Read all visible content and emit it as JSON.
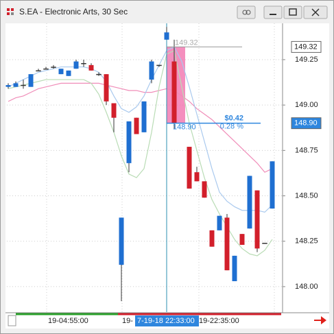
{
  "chart_data": {
    "type": "candlestick",
    "title": "S.EA - Electronic Arts, 30 Sec",
    "categories": [
      null,
      null,
      null,
      null,
      null,
      null,
      null,
      null,
      null,
      null,
      null,
      null,
      null,
      null,
      null,
      null,
      null,
      null,
      null,
      null,
      null,
      null,
      null,
      null,
      null,
      null,
      null,
      null,
      null,
      null,
      null,
      null,
      null,
      null,
      null,
      null
    ],
    "open": [
      149.1,
      149.1,
      149.11,
      149.1,
      149.19,
      149.2,
      149.21,
      149.17,
      149.16,
      149.2,
      149.23,
      149.22,
      149.17,
      149.17,
      149.01,
      148.12,
      148.68,
      148.93,
      148.85,
      149.14,
      149.22,
      149.36,
      149.24,
      null,
      148.77,
      148.63,
      148.58,
      148.31,
      148.31,
      148.38,
      148.03,
      148.29,
      148.32,
      148.53,
      148.24,
      148.43
    ],
    "high": [
      149.12,
      149.13,
      149.14,
      149.17,
      149.2,
      149.21,
      149.22,
      149.2,
      149.19,
      149.25,
      149.25,
      149.23,
      149.18,
      149.17,
      149.01,
      148.38,
      148.91,
      148.93,
      149.02,
      149.25,
      149.22,
      149.43,
      149.36,
      null,
      148.77,
      148.66,
      148.58,
      148.31,
      148.39,
      148.4,
      148.17,
      148.29,
      148.61,
      148.53,
      148.24,
      148.69
    ],
    "low": [
      149.09,
      149.1,
      149.09,
      149.1,
      149.19,
      149.2,
      149.2,
      149.17,
      149.16,
      149.2,
      149.21,
      149.19,
      149.16,
      149.0,
      148.85,
      147.92,
      148.63,
      148.84,
      148.85,
      149.12,
      149.21,
      149.36,
      148.87,
      null,
      148.54,
      148.58,
      148.49,
      148.22,
      148.31,
      148.09,
      148.03,
      148.23,
      148.32,
      148.19,
      148.24,
      148.43
    ],
    "close": [
      149.11,
      149.12,
      149.11,
      149.17,
      149.19,
      149.2,
      149.21,
      149.2,
      149.19,
      149.24,
      149.23,
      149.19,
      149.17,
      149.02,
      148.93,
      148.38,
      148.91,
      148.84,
      149.02,
      149.24,
      149.22,
      149.4,
      148.9,
      null,
      148.54,
      148.58,
      148.49,
      148.22,
      148.39,
      148.09,
      148.17,
      148.23,
      148.61,
      148.21,
      148.24,
      148.69
    ],
    "up_color": "#1f6fd1",
    "down_color": "#d21f2b",
    "lines": [
      {
        "color": "#f08cb8",
        "values": [
          149.02,
          149.04,
          149.05,
          149.07,
          149.09,
          149.1,
          149.11,
          149.12,
          149.12,
          149.12,
          149.12,
          149.12,
          149.12,
          149.11,
          149.1,
          149.09,
          149.08,
          149.08,
          149.07,
          149.07,
          149.08,
          149.09,
          149.08,
          149.05,
          149.02,
          148.98,
          148.95,
          148.92,
          148.88,
          148.84,
          148.8,
          148.76,
          148.72,
          148.68,
          148.63,
          148.65
        ]
      },
      {
        "color": "#a9c9ee",
        "values": [
          149.1,
          149.12,
          149.14,
          149.16,
          149.18,
          149.19,
          149.2,
          149.21,
          149.21,
          149.21,
          149.21,
          149.2,
          149.18,
          149.13,
          149.05,
          148.98,
          148.96,
          148.99,
          149.05,
          149.14,
          149.22,
          149.3,
          149.32,
          149.24,
          149.1,
          148.95,
          148.8,
          148.65,
          148.52,
          148.47,
          148.44,
          148.42,
          148.42,
          148.42,
          148.41,
          148.45
        ]
      },
      {
        "color": "#b9dcb5",
        "values": [
          149.09,
          149.1,
          149.11,
          149.12,
          149.13,
          149.14,
          149.14,
          149.14,
          149.14,
          149.14,
          149.14,
          149.12,
          149.06,
          148.96,
          148.85,
          148.72,
          148.62,
          148.6,
          148.65,
          148.85,
          149.1,
          149.28,
          149.3,
          149.1,
          148.9,
          148.75,
          148.6,
          148.48,
          148.4,
          148.33,
          148.26,
          148.21,
          148.18,
          148.17,
          148.2,
          148.26
        ]
      }
    ],
    "ylim": [
      147.86,
      149.45
    ],
    "yticks": [
      149.25,
      {
        "value": 149,
        "label": "149.00"
      },
      148.75,
      {
        "value": 148.5,
        "label": "148.50"
      },
      148.25,
      {
        "value": 148,
        "label": "148.00"
      }
    ],
    "grid": true,
    "measure": {
      "high": 149.32,
      "low": {
        "value": 148.9,
        "label": "148.90"
      },
      "change_label": "$0.42",
      "pct_label": "0.28 %"
    },
    "price_markers": [
      149.32,
      {
        "value": 148.9,
        "label": "148.90"
      }
    ],
    "time_labels": [
      "19-04:55:00",
      "19-",
      "19-22:35:00"
    ],
    "crosshair_label": "7-19-18 22:33:00"
  }
}
